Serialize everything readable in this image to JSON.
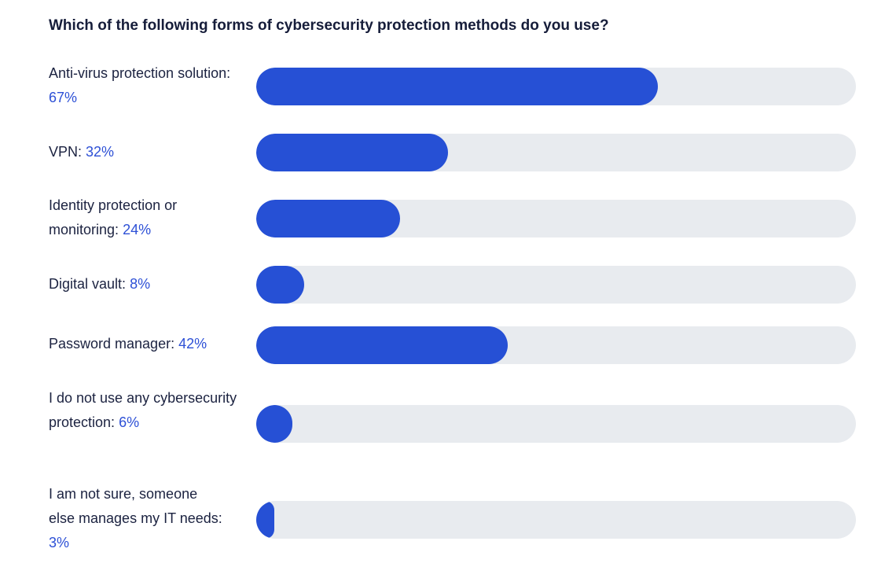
{
  "chart_data": {
    "type": "bar",
    "title": "Which of the following forms of cybersecurity protection methods do you use?",
    "orientation": "horizontal",
    "xlim": [
      0,
      100
    ],
    "unit": "%",
    "colors": {
      "fill": "#2650d5",
      "track": "#e8ebef",
      "percent_text": "#2d50d6"
    },
    "bars": [
      {
        "label": "Anti-virus protection solution:",
        "value": 67,
        "value_text": "67%"
      },
      {
        "label": "VPN:",
        "value": 32,
        "value_text": "32%"
      },
      {
        "label": "Identity protection or monitoring:",
        "value": 24,
        "value_text": "24%"
      },
      {
        "label": "Digital vault:",
        "value": 8,
        "value_text": "8%"
      },
      {
        "label": "Password manager:",
        "value": 42,
        "value_text": "42%"
      },
      {
        "label": "I do not use any cybersecurity protection:",
        "value": 6,
        "value_text": "6%"
      },
      {
        "label": "I am not sure, someone else manages my IT needs:",
        "value": 3,
        "value_text": "3%"
      }
    ]
  }
}
